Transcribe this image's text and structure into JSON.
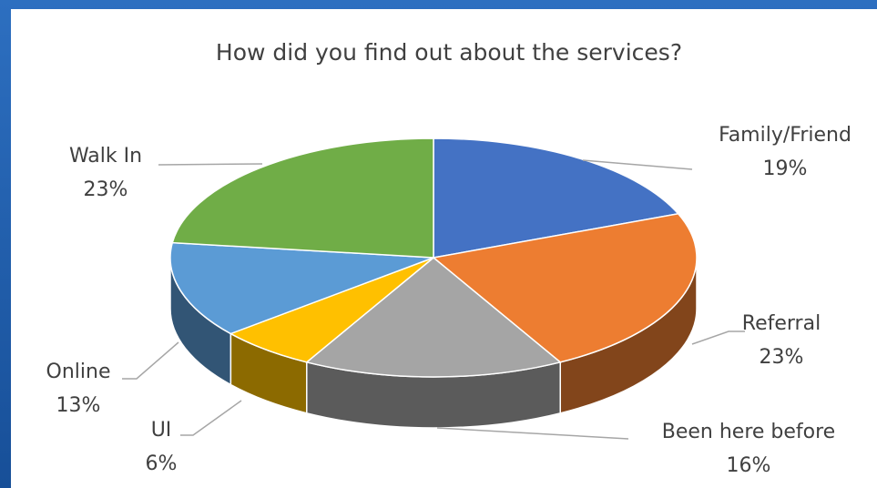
{
  "chart_data": {
    "type": "pie",
    "title": "How did you find out about the services?",
    "slices": [
      {
        "label": "Family/Friend",
        "percent_label": "19%",
        "value": 19,
        "color": "#4472c4"
      },
      {
        "label": "Referral",
        "percent_label": "23%",
        "value": 23,
        "color": "#ed7d31"
      },
      {
        "label": "Been here before",
        "percent_label": "16%",
        "value": 16,
        "color": "#a5a5a5"
      },
      {
        "label": "UI",
        "percent_label": "6%",
        "value": 6,
        "color": "#ffc000"
      },
      {
        "label": "Online",
        "percent_label": "13%",
        "value": 13,
        "color": "#5b9bd5"
      },
      {
        "label": "Walk In",
        "percent_label": "23%",
        "value": 23,
        "color": "#70ad47"
      }
    ],
    "three_d": true,
    "legend": "none (data labels with leader lines)"
  }
}
